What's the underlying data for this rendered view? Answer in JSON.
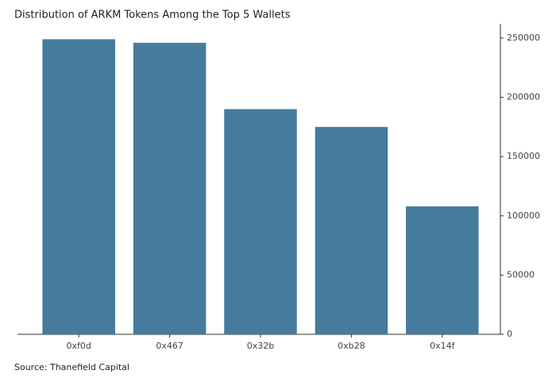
{
  "chart_data": {
    "type": "bar",
    "title": "Distribution of ARKM Tokens Among the Top 5 Wallets",
    "source": "Source: Thanefield Capital",
    "categories": [
      "0xf0d",
      "0x467",
      "0x32b",
      "0xb28",
      "0x14f"
    ],
    "values": [
      249000,
      246000,
      190000,
      175000,
      108000
    ],
    "color": "#457b9d",
    "ylim": [
      0,
      262000
    ],
    "yticks": [
      0,
      50000,
      100000,
      150000,
      200000,
      250000
    ],
    "grid": false
  }
}
